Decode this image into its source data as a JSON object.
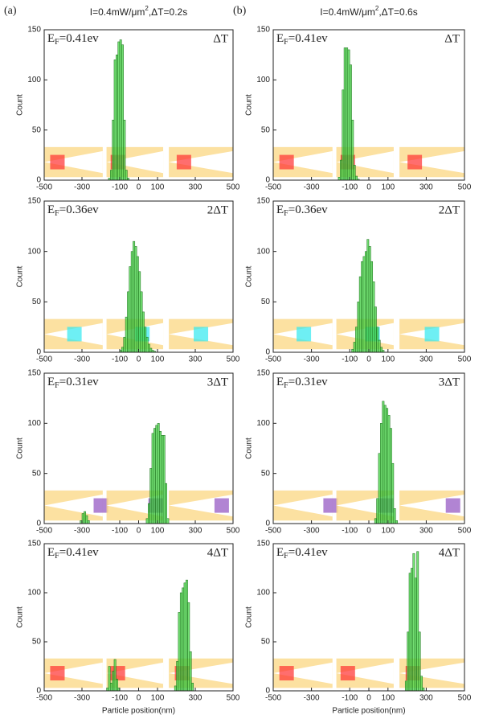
{
  "chart_data": [
    {
      "type": "histogram",
      "panel_label": "(a)",
      "title": [
        "I=0.4mW/μm",
        "2",
        ",ΔT=0.2s"
      ],
      "annotation": [
        "E",
        "F",
        "=0.41ev"
      ],
      "step_label": "ΔT",
      "ylabel": "Count",
      "color": "#44d444",
      "bins": [
        -160,
        -150,
        -140,
        -130,
        -120,
        -110,
        -100,
        -90,
        -80,
        -70,
        -60,
        -50
      ],
      "values": [
        2,
        10,
        60,
        120,
        125,
        138,
        140,
        135,
        60,
        10,
        2
      ],
      "xlim": [
        -500,
        500
      ],
      "xticks": [
        -500,
        -300,
        -100,
        0,
        100,
        300,
        500
      ],
      "ylim": [
        0,
        150
      ],
      "yticks": [
        0,
        50,
        100,
        150
      ]
    },
    {
      "type": "histogram",
      "panel_label": "(b)",
      "title": [
        "I=0.4mW/μm",
        "2",
        ",ΔT=0.6s"
      ],
      "annotation": [
        "E",
        "F",
        "=0.41ev"
      ],
      "step_label": "ΔT",
      "ylabel": "Count",
      "color": "#44d444",
      "bins": [
        -160,
        -150,
        -140,
        -130,
        -120,
        -110,
        -100,
        -90,
        -80,
        -70,
        -60,
        -50
      ],
      "values": [
        3,
        20,
        90,
        132,
        132,
        130,
        115,
        60,
        15,
        4,
        1
      ],
      "xlim": [
        -500,
        500
      ],
      "xticks": [
        -500,
        -300,
        -100,
        0,
        100,
        300,
        500
      ],
      "ylim": [
        0,
        150
      ],
      "yticks": [
        0,
        50,
        100,
        150
      ]
    },
    {
      "type": "histogram",
      "annotation": [
        "E",
        "F",
        "=0.36ev"
      ],
      "step_label": "2ΔT",
      "ylabel": "Count",
      "color": "#44d444",
      "bins": [
        -100,
        -90,
        -80,
        -70,
        -60,
        -50,
        -40,
        -30,
        -20,
        -10,
        0,
        10,
        20,
        30,
        40,
        50,
        60,
        70,
        80,
        90
      ],
      "values": [
        2,
        5,
        15,
        35,
        60,
        85,
        100,
        110,
        105,
        95,
        80,
        60,
        40,
        25,
        15,
        8,
        4,
        2,
        1
      ],
      "xlim": [
        -500,
        500
      ],
      "xticks": [
        -500,
        -300,
        -100,
        0,
        100,
        300,
        500
      ],
      "ylim": [
        0,
        150
      ],
      "yticks": [
        0,
        50,
        100,
        150
      ]
    },
    {
      "type": "histogram",
      "annotation": [
        "E",
        "F",
        "=0.36ev"
      ],
      "step_label": "2ΔT",
      "ylabel": "Count",
      "color": "#44d444",
      "bins": [
        -90,
        -80,
        -70,
        -60,
        -50,
        -40,
        -30,
        -20,
        -10,
        0,
        10,
        20,
        30,
        40,
        50,
        60,
        70,
        80
      ],
      "values": [
        3,
        10,
        25,
        50,
        75,
        90,
        95,
        100,
        112,
        105,
        90,
        70,
        45,
        25,
        12,
        5,
        2
      ],
      "xlim": [
        -500,
        500
      ],
      "xticks": [
        -500,
        -300,
        -100,
        0,
        100,
        300,
        500
      ],
      "ylim": [
        0,
        150
      ],
      "yticks": [
        0,
        50,
        100,
        150
      ]
    },
    {
      "type": "histogram",
      "annotation": [
        "E",
        "F",
        "=0.31ev"
      ],
      "step_label": "3ΔT",
      "ylabel": "Count",
      "color": "#44d444",
      "bins": [
        -310,
        -300,
        -290,
        -280,
        -270,
        -260,
        -250,
        -240,
        -230,
        -220,
        -210,
        -200,
        -190,
        -180,
        -170,
        -160,
        -150,
        -140,
        -130,
        -120,
        -110,
        -100,
        -90,
        -80,
        -70,
        -60,
        -50,
        -40,
        -30,
        -20,
        -10,
        0,
        10,
        20,
        30,
        40,
        50,
        60,
        70,
        80,
        90,
        100,
        110,
        120,
        130,
        140,
        150,
        160
      ],
      "values": [
        3,
        10,
        12,
        8,
        3,
        0,
        0,
        0,
        0,
        0,
        0,
        0,
        0,
        0,
        0,
        0,
        0,
        0,
        0,
        0,
        0,
        0,
        0,
        0,
        0,
        0,
        0,
        0,
        0,
        0,
        0,
        0,
        0,
        0,
        0,
        5,
        20,
        55,
        90,
        95,
        98,
        100,
        92,
        88,
        88,
        40,
        5
      ],
      "xlim": [
        -500,
        500
      ],
      "xticks": [
        -500,
        -300,
        -100,
        0,
        100,
        300,
        500
      ],
      "ylim": [
        0,
        150
      ],
      "yticks": [
        0,
        50,
        100,
        150
      ]
    },
    {
      "type": "histogram",
      "annotation": [
        "E",
        "F",
        "=0.31ev"
      ],
      "step_label": "3ΔT",
      "ylabel": "Count",
      "color": "#44d444",
      "bins": [
        30,
        40,
        50,
        60,
        70,
        80,
        90,
        100,
        110,
        120,
        130,
        140,
        150
      ],
      "values": [
        5,
        25,
        70,
        100,
        122,
        118,
        115,
        108,
        95,
        60,
        15,
        3
      ],
      "xlim": [
        -500,
        500
      ],
      "xticks": [
        -500,
        -300,
        -100,
        0,
        100,
        300,
        500
      ],
      "ylim": [
        0,
        150
      ],
      "yticks": [
        0,
        50,
        100,
        150
      ]
    },
    {
      "type": "histogram",
      "annotation": [
        "E",
        "F",
        "=0.41ev"
      ],
      "step_label": "4ΔT",
      "ylabel": "Count",
      "xlabel": "Particle position(nm)",
      "color": "#44d444",
      "bins": [
        -170,
        -160,
        -150,
        -140,
        -130,
        -120,
        -110,
        -100,
        -90,
        -80,
        -70,
        -60,
        -50,
        -40,
        -30,
        -20,
        -10,
        0,
        10,
        20,
        30,
        40,
        50,
        60,
        70,
        80,
        90,
        100,
        110,
        120,
        130,
        140,
        150,
        160,
        170,
        180,
        190,
        200,
        210,
        220,
        230,
        240,
        250,
        260,
        270,
        280,
        290
      ],
      "values": [
        3,
        25,
        8,
        20,
        32,
        12,
        3,
        0,
        0,
        0,
        0,
        0,
        0,
        0,
        0,
        0,
        0,
        0,
        0,
        0,
        0,
        0,
        0,
        0,
        0,
        0,
        0,
        0,
        0,
        0,
        0,
        0,
        0,
        0,
        0,
        0,
        5,
        30,
        80,
        100,
        105,
        110,
        113,
        90,
        40,
        8
      ],
      "xlim": [
        -500,
        500
      ],
      "xticks": [
        -500,
        -300,
        -100,
        0,
        100,
        300,
        500
      ],
      "ylim": [
        0,
        150
      ],
      "yticks": [
        0,
        50,
        100,
        150
      ]
    },
    {
      "type": "histogram",
      "annotation": [
        "E",
        "F",
        "=0.41ev"
      ],
      "step_label": "4ΔT",
      "ylabel": "Count",
      "xlabel": "Particle position(nm)",
      "color": "#44d444",
      "bins": [
        190,
        200,
        210,
        220,
        230,
        240,
        250,
        260,
        270,
        280,
        290
      ],
      "values": [
        10,
        60,
        120,
        125,
        140,
        115,
        142,
        60,
        15,
        3
      ],
      "xlim": [
        -500,
        500
      ],
      "xticks": [
        -500,
        -300,
        -100,
        0,
        100,
        300,
        500
      ],
      "ylim": [
        0,
        150
      ],
      "yticks": [
        0,
        50,
        100,
        150
      ]
    }
  ]
}
